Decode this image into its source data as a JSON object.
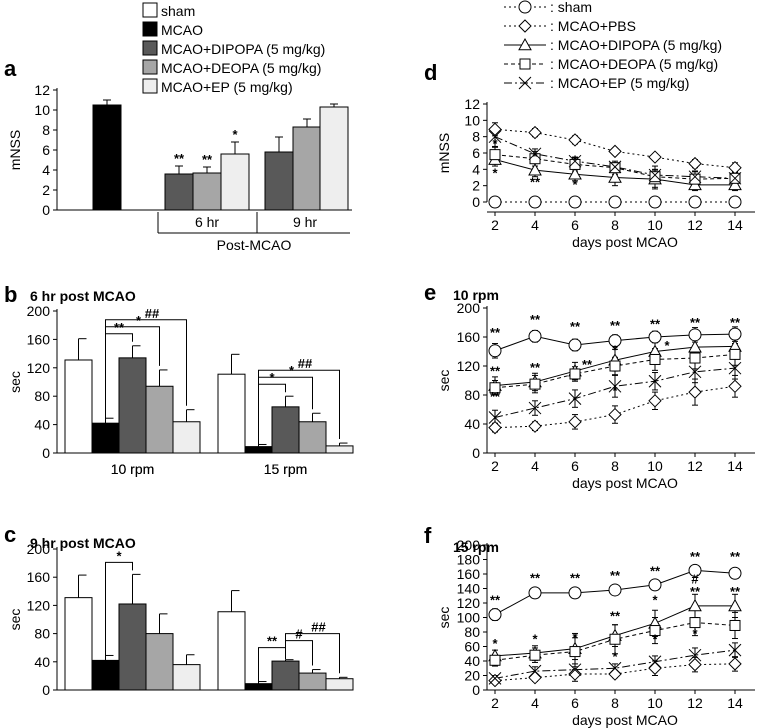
{
  "colors": {
    "sham": "#ffffff",
    "mcao": "#000000",
    "dipopa": "#595959",
    "deopa": "#a6a6a6",
    "ep": "#eeeeee",
    "line": "#000000"
  },
  "legend_left": {
    "items": [
      {
        "label": "sham",
        "key": "sham"
      },
      {
        "label": "MCAO",
        "key": "mcao"
      },
      {
        "label": "MCAO+DIPOPA (5 mg/kg)",
        "key": "dipopa"
      },
      {
        "label": "MCAO+DEOPA (5 mg/kg)",
        "key": "deopa"
      },
      {
        "label": "MCAO+EP (5 mg/kg)",
        "key": "ep"
      }
    ]
  },
  "legend_right": {
    "items": [
      {
        "label": ": sham",
        "marker": "circle",
        "dash": "2,3"
      },
      {
        "label": ": MCAO+PBS",
        "marker": "diamond",
        "dash": "2,3"
      },
      {
        "label": ": MCAO+DIPOPA (5 mg/kg)",
        "marker": "triangle",
        "dash": ""
      },
      {
        "label": ": MCAO+DEOPA (5 mg/kg)",
        "marker": "square",
        "dash": "4,3"
      },
      {
        "label": ": MCAO+EP (5 mg/kg)",
        "marker": "cross",
        "dash": "8,3,2,3"
      }
    ]
  },
  "chart_data": [
    {
      "id": "a",
      "letter": "a",
      "type": "bar",
      "title": "",
      "ylabel": "mNSS",
      "xlabel": "",
      "ylim": [
        0,
        12
      ],
      "yticks": [
        0,
        2,
        4,
        6,
        8,
        10,
        12
      ],
      "group_labels": [
        "6 hr",
        "9 hr"
      ],
      "group_caption": "Post-MCAO",
      "bars": [
        {
          "key": "mcao",
          "value": 10.5,
          "err": 0.5,
          "stars": ""
        },
        {
          "key": "dipopa",
          "value": 3.6,
          "err": 0.8,
          "stars": "**"
        },
        {
          "key": "deopa",
          "value": 3.7,
          "err": 0.6,
          "stars": "**"
        },
        {
          "key": "ep",
          "value": 5.6,
          "err": 1.2,
          "stars": "*"
        },
        {
          "key": "dipopa",
          "value": 5.8,
          "err": 1.5,
          "stars": ""
        },
        {
          "key": "deopa",
          "value": 8.3,
          "err": 0.8,
          "stars": ""
        },
        {
          "key": "ep",
          "value": 10.3,
          "err": 0.3,
          "stars": ""
        }
      ]
    },
    {
      "id": "b",
      "letter": "b",
      "type": "bar",
      "title": "6 hr post MCAO",
      "ylabel": "sec",
      "xlabel": "",
      "ylim": [
        0,
        200
      ],
      "yticks": [
        0,
        40,
        80,
        120,
        160,
        200
      ],
      "categories": [
        "10 rpm",
        "15 rpm"
      ],
      "series": [
        {
          "name": "sham",
          "key": "sham",
          "values": [
            131,
            111
          ],
          "err": [
            30,
            28
          ]
        },
        {
          "name": "MCAO",
          "key": "mcao",
          "values": [
            42,
            9
          ],
          "err": [
            7,
            3
          ]
        },
        {
          "name": "MCAO+DIPOPA (5 mg/kg)",
          "key": "dipopa",
          "values": [
            134,
            65
          ],
          "err": [
            17,
            15
          ]
        },
        {
          "name": "MCAO+DEOPA (5 mg/kg)",
          "key": "deopa",
          "values": [
            94,
            44
          ],
          "err": [
            23,
            12
          ]
        },
        {
          "name": "MCAO+EP (5 mg/kg)",
          "key": "ep",
          "values": [
            44,
            10
          ],
          "err": [
            17,
            4
          ]
        }
      ],
      "brackets": [
        {
          "cat": 0,
          "from": 1,
          "to": 2,
          "label": "**"
        },
        {
          "cat": 0,
          "from": 1,
          "to": 3,
          "label": "*"
        },
        {
          "cat": 0,
          "from": 1,
          "to": 4,
          "label": "##"
        },
        {
          "cat": 1,
          "from": 1,
          "to": 2,
          "label": "*"
        },
        {
          "cat": 1,
          "from": 1,
          "to": 3,
          "label": "*"
        },
        {
          "cat": 1,
          "from": 1,
          "to": 4,
          "label": "##"
        }
      ]
    },
    {
      "id": "c",
      "letter": "c",
      "type": "bar",
      "title": "9 hr post MCAO",
      "ylabel": "sec",
      "xlabel": "",
      "ylim": [
        0,
        200
      ],
      "yticks": [
        0,
        40,
        80,
        120,
        160,
        200
      ],
      "categories": [
        "10 rpm",
        "15 rpm"
      ],
      "series": [
        {
          "name": "sham",
          "key": "sham",
          "values": [
            131,
            111
          ],
          "err": [
            32,
            30
          ]
        },
        {
          "name": "MCAO",
          "key": "mcao",
          "values": [
            42,
            9
          ],
          "err": [
            7,
            3
          ]
        },
        {
          "name": "MCAO+DIPOPA (5 mg/kg)",
          "key": "dipopa",
          "values": [
            122,
            41
          ],
          "err": [
            42,
            2
          ]
        },
        {
          "name": "MCAO+DEOPA (5 mg/kg)",
          "key": "deopa",
          "values": [
            80,
            24
          ],
          "err": [
            28,
            5
          ]
        },
        {
          "name": "MCAO+EP (5 mg/kg)",
          "key": "ep",
          "values": [
            36,
            16
          ],
          "err": [
            14,
            2
          ]
        }
      ],
      "brackets": [
        {
          "cat": 0,
          "from": 1,
          "to": 2,
          "label": "*"
        },
        {
          "cat": 1,
          "from": 1,
          "to": 2,
          "label": "**"
        },
        {
          "cat": 1,
          "from": 2,
          "to": 3,
          "label": "#"
        },
        {
          "cat": 1,
          "from": 2,
          "to": 4,
          "label": "##"
        }
      ]
    },
    {
      "id": "d",
      "letter": "d",
      "type": "line",
      "title": "",
      "ylabel": "mNSS",
      "xlabel": "days post MCAO",
      "x": [
        2,
        4,
        6,
        8,
        10,
        12,
        14
      ],
      "ylim": [
        0,
        12
      ],
      "yticks": [
        0,
        2,
        4,
        6,
        8,
        10,
        12
      ],
      "series": [
        {
          "name": "sham",
          "marker": "circle",
          "dash": "2,3",
          "values": [
            0,
            0,
            0,
            0,
            0,
            0,
            0
          ],
          "err": [
            0,
            0,
            0,
            0,
            0,
            0,
            0
          ]
        },
        {
          "name": "MCAO+PBS",
          "marker": "diamond",
          "dash": "2,3",
          "values": [
            8.9,
            8.5,
            7.6,
            6.2,
            5.5,
            4.7,
            4.2
          ],
          "err": [
            0.8,
            0.5,
            0.5,
            0.4,
            0.4,
            0.5,
            0.6
          ]
        },
        {
          "name": "MCAO+DIPOPA (5 mg/kg)",
          "marker": "triangle",
          "dash": "",
          "values": [
            5.2,
            3.9,
            3.4,
            3.0,
            2.8,
            2.1,
            2.1
          ],
          "err": [
            0.8,
            0.8,
            0.8,
            1.0,
            1.2,
            0.7,
            0.7
          ]
        },
        {
          "name": "MCAO+DEOPA (5 mg/kg)",
          "marker": "square",
          "dash": "4,3",
          "values": [
            5.8,
            5.3,
            4.6,
            4.2,
            3.1,
            2.8,
            2.9
          ],
          "err": [
            0.9,
            0.9,
            0.8,
            0.8,
            1.3,
            1.0,
            0.8
          ]
        },
        {
          "name": "MCAO+EP (5 mg/kg)",
          "marker": "cross",
          "dash": "8,3,2,3",
          "values": [
            8.0,
            5.9,
            5.0,
            4.3,
            3.3,
            3.1,
            2.9
          ],
          "err": [
            1.2,
            0.6,
            0.5,
            0.5,
            0.6,
            0.6,
            0.6
          ]
        }
      ],
      "stars": [
        {
          "x": 2,
          "y": 6.6,
          "label": "*"
        },
        {
          "x": 2,
          "y": 3.0,
          "label": "*"
        },
        {
          "x": 4,
          "y": 5.0,
          "label": "*"
        },
        {
          "x": 4,
          "y": 1.9,
          "label": "**"
        },
        {
          "x": 6,
          "y": 4.6,
          "label": "*"
        },
        {
          "x": 6,
          "y": 1.6,
          "label": "*"
        }
      ]
    },
    {
      "id": "e",
      "letter": "e",
      "type": "line",
      "title": "10 rpm",
      "ylabel": "sec",
      "xlabel": "days post MCAO",
      "x": [
        2,
        4,
        6,
        8,
        10,
        12,
        14
      ],
      "ylim": [
        0,
        200
      ],
      "yticks": [
        0,
        40,
        80,
        120,
        160,
        200
      ],
      "series": [
        {
          "name": "sham",
          "marker": "circle",
          "dash": "",
          "values": [
            141,
            161,
            149,
            155,
            160,
            163,
            164
          ],
          "err": [
            10,
            8,
            8,
            8,
            8,
            10,
            10
          ]
        },
        {
          "name": "MCAO+PBS",
          "marker": "diamond",
          "dash": "2,3",
          "values": [
            35,
            37,
            43,
            53,
            72,
            84,
            92
          ],
          "err": [
            6,
            6,
            10,
            12,
            12,
            18,
            15
          ]
        },
        {
          "name": "MCAO+DIPOPA (5 mg/kg)",
          "marker": "triangle",
          "dash": "",
          "values": [
            93,
            98,
            113,
            128,
            140,
            146,
            147
          ],
          "err": [
            12,
            12,
            12,
            15,
            15,
            15,
            15
          ]
        },
        {
          "name": "MCAO+DEOPA (5 mg/kg)",
          "marker": "square",
          "dash": "4,3",
          "values": [
            90,
            95,
            109,
            120,
            129,
            131,
            136
          ],
          "err": [
            10,
            12,
            10,
            12,
            15,
            15,
            15
          ]
        },
        {
          "name": "MCAO+EP (5 mg/kg)",
          "marker": "cross",
          "dash": "8,3,2,3",
          "values": [
            49,
            62,
            75,
            92,
            99,
            112,
            117
          ],
          "err": [
            10,
            10,
            12,
            15,
            12,
            15,
            15
          ]
        }
      ],
      "stars": [
        {
          "x": 2,
          "y": 160,
          "label": "**"
        },
        {
          "x": 2,
          "y": 107,
          "label": "**"
        },
        {
          "x": 2,
          "y": 72,
          "label": "**"
        },
        {
          "x": 4,
          "y": 178,
          "label": "**"
        },
        {
          "x": 4,
          "y": 112,
          "label": "**"
        },
        {
          "x": 6,
          "y": 168,
          "label": "**"
        },
        {
          "x": 6.6,
          "y": 116,
          "label": "**"
        },
        {
          "x": 8,
          "y": 170,
          "label": "**"
        },
        {
          "x": 8,
          "y": 136,
          "label": "*"
        },
        {
          "x": 8,
          "y": 80,
          "label": "*"
        },
        {
          "x": 10,
          "y": 172,
          "label": "**"
        },
        {
          "x": 10.6,
          "y": 142,
          "label": "*"
        },
        {
          "x": 12,
          "y": 174,
          "label": "**"
        },
        {
          "x": 14,
          "y": 174,
          "label": "**"
        }
      ]
    },
    {
      "id": "f",
      "letter": "f",
      "type": "line",
      "title": "15 rpm",
      "ylabel": "sec",
      "xlabel": "days post MCAO",
      "x": [
        2,
        4,
        6,
        8,
        10,
        12,
        14
      ],
      "ylim": [
        0,
        200
      ],
      "yticks": [
        0,
        20,
        40,
        60,
        80,
        100,
        120,
        140,
        160,
        180,
        200
      ],
      "series": [
        {
          "name": "sham",
          "marker": "circle",
          "dash": "",
          "values": [
            104,
            134,
            134,
            138,
            145,
            165,
            161
          ],
          "err": [
            8,
            6,
            5,
            5,
            5,
            5,
            5
          ]
        },
        {
          "name": "MCAO+PBS",
          "marker": "diamond",
          "dash": "2,3",
          "values": [
            13,
            17,
            22,
            22,
            30,
            35,
            36
          ],
          "err": [
            3,
            5,
            10,
            5,
            10,
            10,
            10
          ]
        },
        {
          "name": "MCAO+DIPOPA (5 mg/kg)",
          "marker": "triangle",
          "dash": "",
          "values": [
            47,
            51,
            57,
            75,
            92,
            116,
            116
          ],
          "err": [
            8,
            10,
            15,
            15,
            18,
            16,
            16
          ]
        },
        {
          "name": "MCAO+DEOPA (5 mg/kg)",
          "marker": "square",
          "dash": "4,3",
          "values": [
            41,
            48,
            53,
            70,
            82,
            93,
            89
          ],
          "err": [
            8,
            10,
            25,
            20,
            18,
            18,
            18
          ]
        },
        {
          "name": "MCAO+EP (5 mg/kg)",
          "marker": "cross",
          "dash": "8,3,2,3",
          "values": [
            16,
            26,
            28,
            30,
            39,
            48,
            55
          ],
          "err": [
            4,
            6,
            8,
            6,
            8,
            10,
            10
          ]
        }
      ],
      "stars": [
        {
          "x": 2,
          "y": 118,
          "label": "**"
        },
        {
          "x": 2,
          "y": 58,
          "label": "*"
        },
        {
          "x": 4,
          "y": 148,
          "label": "**"
        },
        {
          "x": 4,
          "y": 64,
          "label": "*"
        },
        {
          "x": 6,
          "y": 148,
          "label": "**"
        },
        {
          "x": 6,
          "y": 66,
          "label": "*"
        },
        {
          "x": 8,
          "y": 152,
          "label": "**"
        },
        {
          "x": 8,
          "y": 96,
          "label": "**"
        },
        {
          "x": 8,
          "y": 40,
          "label": "*"
        },
        {
          "x": 10,
          "y": 158,
          "label": "**"
        },
        {
          "x": 10,
          "y": 118,
          "label": "*"
        },
        {
          "x": 10,
          "y": 64,
          "label": "*"
        },
        {
          "x": 12,
          "y": 178,
          "label": "**"
        },
        {
          "x": 12,
          "y": 147,
          "label": "#"
        },
        {
          "x": 12,
          "y": 130,
          "label": "**"
        },
        {
          "x": 12,
          "y": 72,
          "label": "*"
        },
        {
          "x": 14,
          "y": 178,
          "label": "**"
        },
        {
          "x": 14,
          "y": 130,
          "label": "**"
        }
      ]
    }
  ]
}
